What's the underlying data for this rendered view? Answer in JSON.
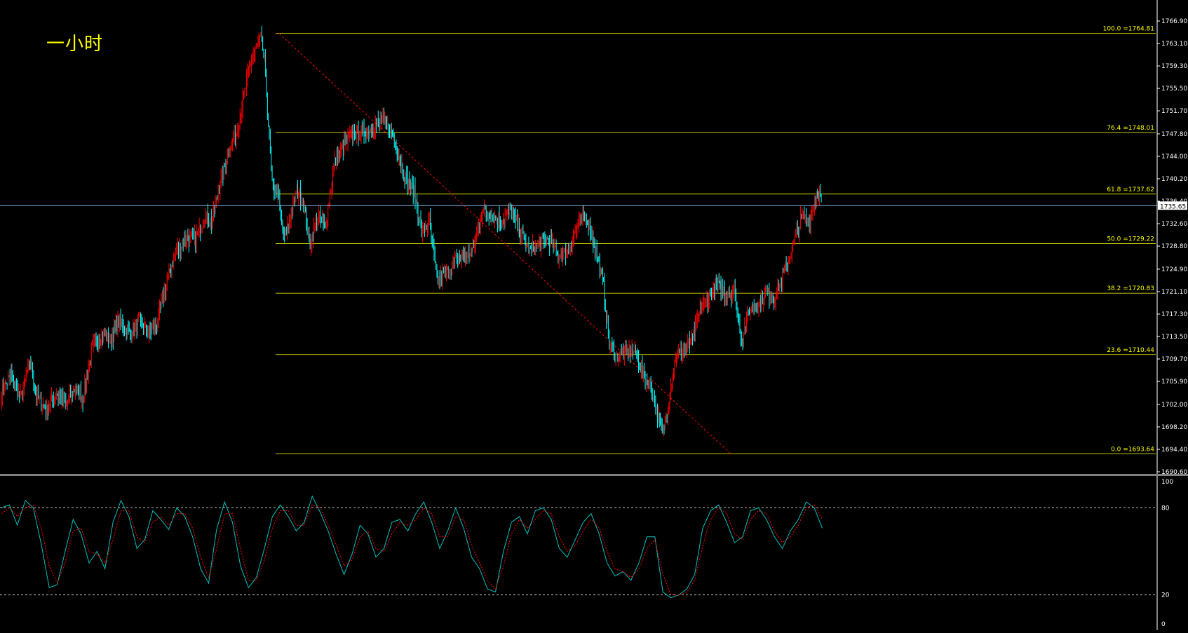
{
  "timeframe_label": "一小时",
  "colors": {
    "background": "#000000",
    "bull": "#ff0000",
    "bear": "#00ffff",
    "fib_line": "#c8c800",
    "fib_text": "#ffff00",
    "trend_line": "#ff0000",
    "axis_text": "#ffffff",
    "price_tag_bg": "#ffffff",
    "price_tag_text": "#000000",
    "stoch_main": "#00c0c0",
    "stoch_signal": "#ff0000"
  },
  "chart_data": [
    {
      "type": "candlestick",
      "title": "",
      "y_axis": {
        "ticks": [
          "1766.90",
          "1763.10",
          "1759.30",
          "1755.50",
          "1751.70",
          "1747.80",
          "1744.00",
          "1740.20",
          "1736.40",
          "1732.60",
          "1728.80",
          "1724.90",
          "1721.10",
          "1717.30",
          "1713.50",
          "1709.70",
          "1705.90",
          "1702.00",
          "1698.20",
          "1694.40",
          "1690.60"
        ],
        "range": [
          1690.6,
          1766.9
        ]
      },
      "current_price": "1735.65",
      "current_price_value": 1735.65,
      "fibonacci": [
        {
          "level": "100.0",
          "price": "1764.81",
          "value": 1764.81
        },
        {
          "level": "76.4",
          "price": "1748.01",
          "value": 1748.01
        },
        {
          "level": "61.8",
          "price": "1737.62",
          "value": 1737.62
        },
        {
          "level": "50.0",
          "price": "1729.22",
          "value": 1729.22
        },
        {
          "level": "38.2",
          "price": "1720.83",
          "value": 1720.83
        },
        {
          "level": "23.6",
          "price": "1710.44",
          "value": 1710.44
        },
        {
          "level": "0.0",
          "price": "1693.64",
          "value": 1693.64
        }
      ],
      "fib_label_prefix": "=",
      "trend_line": {
        "from_price": 1764.81,
        "to_price": 1693.64
      },
      "anchors": [
        [
          0,
          1704
        ],
        [
          10,
          1707
        ],
        [
          20,
          1703
        ],
        [
          30,
          1709
        ],
        [
          38,
          1703
        ],
        [
          48,
          1701
        ],
        [
          58,
          1704
        ],
        [
          68,
          1702
        ],
        [
          78,
          1705
        ],
        [
          86,
          1703
        ],
        [
          95,
          1711
        ],
        [
          105,
          1714
        ],
        [
          115,
          1713
        ],
        [
          125,
          1716
        ],
        [
          135,
          1714
        ],
        [
          145,
          1716
        ],
        [
          155,
          1714
        ],
        [
          165,
          1716
        ],
        [
          175,
          1723
        ],
        [
          185,
          1728
        ],
        [
          195,
          1730
        ],
        [
          205,
          1730
        ],
        [
          215,
          1734
        ],
        [
          222,
          1733
        ],
        [
          232,
          1740
        ],
        [
          240,
          1745
        ],
        [
          248,
          1748
        ],
        [
          256,
          1754
        ],
        [
          262,
          1759
        ],
        [
          268,
          1762
        ],
        [
          274,
          1764
        ],
        [
          278,
          1760
        ],
        [
          286,
          1739
        ],
        [
          292,
          1738
        ],
        [
          298,
          1730
        ],
        [
          306,
          1734
        ],
        [
          312,
          1738
        ],
        [
          318,
          1737
        ],
        [
          326,
          1729
        ],
        [
          334,
          1734
        ],
        [
          342,
          1732
        ],
        [
          352,
          1743
        ],
        [
          362,
          1746
        ],
        [
          372,
          1748
        ],
        [
          382,
          1748
        ],
        [
          392,
          1749
        ],
        [
          402,
          1750
        ],
        [
          412,
          1748
        ],
        [
          420,
          1744
        ],
        [
          428,
          1740
        ],
        [
          436,
          1738
        ],
        [
          444,
          1731
        ],
        [
          452,
          1733
        ],
        [
          460,
          1723
        ],
        [
          468,
          1724
        ],
        [
          478,
          1726
        ],
        [
          488,
          1727
        ],
        [
          498,
          1728
        ],
        [
          508,
          1735
        ],
        [
          518,
          1734
        ],
        [
          528,
          1733
        ],
        [
          538,
          1735
        ],
        [
          548,
          1731
        ],
        [
          558,
          1728
        ],
        [
          568,
          1729
        ],
        [
          578,
          1730
        ],
        [
          588,
          1727
        ],
        [
          598,
          1728
        ],
        [
          608,
          1732
        ],
        [
          618,
          1734
        ],
        [
          628,
          1728
        ],
        [
          636,
          1722
        ],
        [
          642,
          1712
        ],
        [
          650,
          1710
        ],
        [
          660,
          1711
        ],
        [
          670,
          1711
        ],
        [
          678,
          1707
        ],
        [
          686,
          1705
        ],
        [
          692,
          1701
        ],
        [
          698,
          1697
        ],
        [
          704,
          1702
        ],
        [
          712,
          1710
        ],
        [
          720,
          1711
        ],
        [
          730,
          1713
        ],
        [
          738,
          1718
        ],
        [
          746,
          1720
        ],
        [
          756,
          1722
        ],
        [
          764,
          1721
        ],
        [
          774,
          1721
        ],
        [
          782,
          1713
        ],
        [
          790,
          1718
        ],
        [
          800,
          1719
        ],
        [
          808,
          1721
        ],
        [
          816,
          1720
        ],
        [
          826,
          1724
        ],
        [
          836,
          1729
        ],
        [
          846,
          1734
        ],
        [
          854,
          1733
        ],
        [
          862,
          1738
        ],
        [
          866,
          1737
        ]
      ]
    },
    {
      "type": "line",
      "title": "",
      "y_axis": {
        "ticks": [
          "100",
          "80",
          "20",
          "0"
        ],
        "range": [
          0,
          100
        ]
      },
      "levels": [
        80,
        20
      ],
      "series": [
        {
          "values": [
            80,
            82,
            68,
            85,
            80,
            55,
            25,
            27,
            50,
            72,
            62,
            42,
            50,
            38,
            70,
            85,
            74,
            52,
            58,
            78,
            72,
            65,
            80,
            74,
            60,
            38,
            28,
            65,
            84,
            70,
            40,
            25,
            32,
            52,
            74,
            82,
            74,
            64,
            70,
            88,
            77,
            64,
            48,
            34,
            48,
            68,
            62,
            46,
            52,
            70,
            72,
            64,
            76,
            84,
            70,
            52,
            64,
            80,
            66,
            46,
            38,
            24,
            22,
            50,
            70,
            74,
            62,
            78,
            80,
            72,
            52,
            46,
            58,
            70,
            76,
            62,
            42,
            33,
            36,
            30,
            42,
            60,
            60,
            22,
            18,
            20,
            24,
            34,
            66,
            78,
            82,
            70,
            56,
            60,
            78,
            80,
            72,
            60,
            52,
            64,
            72,
            84,
            80,
            66
          ]
        },
        {
          "values": [
            76,
            80,
            74,
            80,
            82,
            66,
            40,
            28,
            42,
            64,
            66,
            50,
            48,
            42,
            58,
            78,
            78,
            60,
            56,
            70,
            74,
            68,
            76,
            76,
            66,
            46,
            32,
            52,
            76,
            76,
            52,
            30,
            30,
            44,
            66,
            78,
            78,
            68,
            68,
            82,
            80,
            68,
            54,
            40,
            44,
            60,
            64,
            52,
            50,
            62,
            70,
            68,
            72,
            80,
            76,
            60,
            60,
            74,
            72,
            54,
            42,
            30,
            24,
            40,
            62,
            72,
            66,
            72,
            78,
            76,
            60,
            50,
            54,
            64,
            72,
            66,
            50,
            38,
            36,
            32,
            38,
            52,
            58,
            34,
            20,
            20,
            22,
            30,
            54,
            72,
            80,
            76,
            62,
            58,
            72,
            78,
            76,
            64,
            56,
            60,
            68,
            80,
            82,
            72
          ]
        }
      ]
    }
  ]
}
